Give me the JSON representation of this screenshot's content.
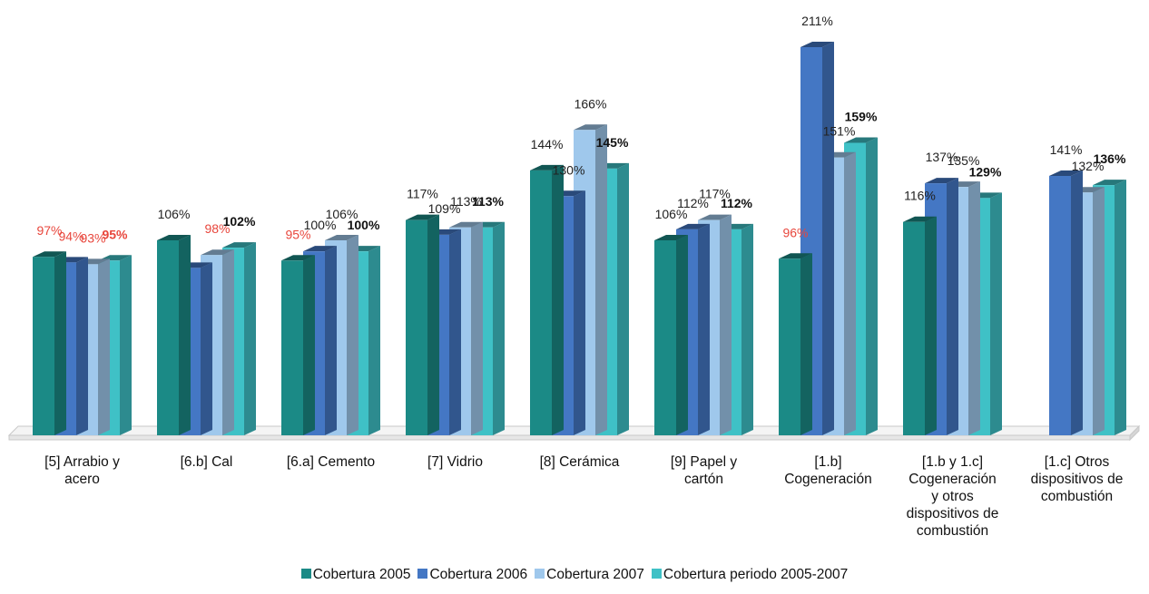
{
  "chart_data": {
    "type": "bar",
    "categories": [
      "[5] Arrabio y\nacero",
      "[6.b] Cal",
      "[6.a] Cemento",
      "[7] Vidrio",
      "[8] Cerámica",
      "[9] Papel y\ncartón",
      "[1.b]\nCogeneración",
      "[1.b y 1.c]\nCogeneración\ny otros\ndispositivos de\ncombustión",
      "[1.c] Otros\ndispositivos de\ncombustión"
    ],
    "series": [
      {
        "name": "Cobertura 2005",
        "color": "#1b8a86",
        "values": [
          97,
          106,
          95,
          117,
          144,
          106,
          96,
          116,
          null
        ],
        "labels": [
          "97%",
          "106%",
          "95%",
          "117%",
          "144%",
          "106%",
          "96%",
          "116%",
          ""
        ],
        "label_colors": [
          "#e8463c",
          "#222222",
          "#e8463c",
          "#222222",
          "#222222",
          "#222222",
          "#e8463c",
          "#222222",
          "#222222"
        ]
      },
      {
        "name": "Cobertura 2006",
        "color": "#4477c4",
        "values": [
          94,
          91,
          100,
          109,
          130,
          112,
          211,
          137,
          141
        ],
        "labels": [
          "94%",
          "",
          "100%",
          "109%",
          "130%",
          "112%",
          "211%",
          "137%",
          "141%"
        ],
        "label_colors": [
          "#e8463c",
          "#222222",
          "#222222",
          "#222222",
          "#222222",
          "#222222",
          "#222222",
          "#222222",
          "#222222"
        ]
      },
      {
        "name": "Cobertura 2007",
        "color": "#9fc8ec",
        "values": [
          93,
          98,
          106,
          113,
          166,
          117,
          151,
          135,
          132
        ],
        "labels": [
          "93%",
          "98%",
          "106%",
          "113%",
          "166%",
          "117%",
          "151%",
          "135%",
          "132%"
        ],
        "label_colors": [
          "#e8463c",
          "#e8463c",
          "#222222",
          "#222222",
          "#222222",
          "#222222",
          "#222222",
          "#222222",
          "#222222"
        ]
      },
      {
        "name": "Cobertura periodo 2005-2007",
        "color": "#3fc1c6",
        "values": [
          95,
          102,
          100,
          113,
          145,
          112,
          159,
          129,
          136
        ],
        "labels": [
          "95%",
          "102%",
          "100%",
          "113%",
          "145%",
          "112%",
          "159%",
          "129%",
          "136%"
        ],
        "label_colors": [
          "#e8463c",
          "#111111",
          "#111111",
          "#111111",
          "#111111",
          "#111111",
          "#111111",
          "#111111",
          "#111111"
        ],
        "bold_labels": true
      }
    ],
    "ylim": [
      0,
      211
    ],
    "grid": false,
    "legend_position": "bottom"
  }
}
